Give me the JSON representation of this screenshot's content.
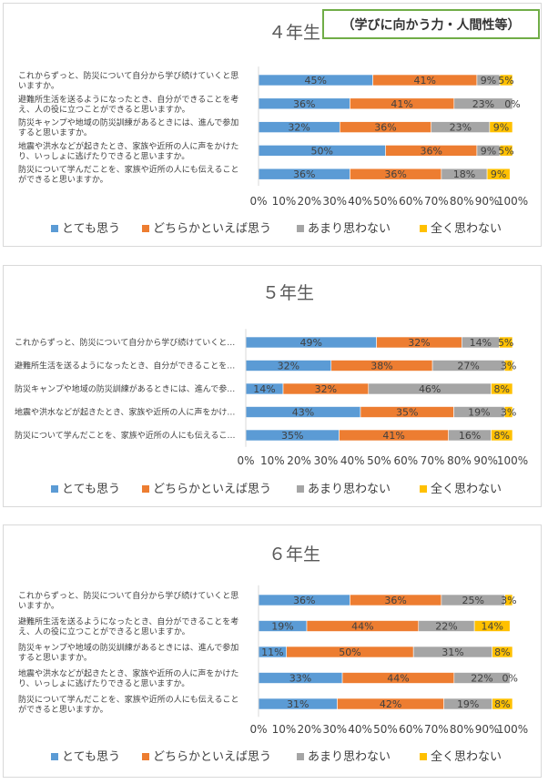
{
  "badge": "（学びに向かう力・人間性等）",
  "chart_data": [
    {
      "type": "bar",
      "orientation": "horizontal-stacked-100",
      "title": "４年生",
      "categories": [
        [
          "これからずっと、防災について自分から学び続けていくと思",
          "いますか。"
        ],
        [
          "避難所生活を送るようになったとき、自分ができることを考",
          "え、人の役に立つことができると思いますか。"
        ],
        [
          "防災キャンプや地域の防災訓練があるときには、進んで参加",
          "すると思いますか。"
        ],
        [
          "地震や洪水などが起きたとき、家族や近所の人に声をかけた",
          "り、いっしょに逃げたりできると思いますか。"
        ],
        [
          "防災について学んだことを、家族や近所の人にも伝えること",
          "ができると思いますか。"
        ]
      ],
      "series": [
        {
          "name": "とても思う",
          "values": [
            45,
            36,
            32,
            50,
            36
          ]
        },
        {
          "name": "どちらかといえば思う",
          "values": [
            41,
            41,
            36,
            36,
            36
          ]
        },
        {
          "name": "あまり思わない",
          "values": [
            9,
            23,
            23,
            9,
            18
          ]
        },
        {
          "name": "全く思わない",
          "values": [
            5,
            0,
            9,
            5,
            9
          ]
        }
      ],
      "x_ticks": [
        "0%",
        "10%",
        "20%",
        "30%",
        "40%",
        "50%",
        "60%",
        "70%",
        "80%",
        "90%",
        "100%"
      ],
      "xlim": [
        0,
        100
      ],
      "legend": "bottom",
      "grid": false
    },
    {
      "type": "bar",
      "orientation": "horizontal-stacked-100",
      "title": "５年生",
      "categories": [
        [
          "これからずっと、防災について自分から学び続けていくと…"
        ],
        [
          "避難所生活を送るようになったとき、自分ができることを…"
        ],
        [
          "防災キャンプや地域の防災訓練があるときには、進んで参…"
        ],
        [
          "地震や洪水などが起きたとき、家族や近所の人に声をかけ…"
        ],
        [
          "防災について学んだことを、家族や近所の人にも伝えるこ…"
        ]
      ],
      "series": [
        {
          "name": "とても思う",
          "values": [
            49,
            32,
            14,
            43,
            35
          ]
        },
        {
          "name": "どちらかといえば思う",
          "values": [
            32,
            38,
            32,
            35,
            41
          ]
        },
        {
          "name": "あまり思わない",
          "values": [
            14,
            27,
            46,
            19,
            16
          ]
        },
        {
          "name": "全く思わない",
          "values": [
            5,
            3,
            8,
            3,
            8
          ]
        }
      ],
      "x_ticks": [
        "0%",
        "10%",
        "20%",
        "30%",
        "40%",
        "50%",
        "60%",
        "70%",
        "80%",
        "90%",
        "100%"
      ],
      "xlim": [
        0,
        100
      ],
      "legend": "bottom",
      "grid": false
    },
    {
      "type": "bar",
      "orientation": "horizontal-stacked-100",
      "title": "６年生",
      "categories": [
        [
          "これからずっと、防災について自分から学び続けていくと思",
          "いますか。"
        ],
        [
          "避難所生活を送るようになったとき、自分ができることを考",
          "え、人の役に立つことができると思いますか。"
        ],
        [
          "防災キャンプや地域の防災訓練があるときには、進んで参加",
          "すると思いますか。"
        ],
        [
          "地震や洪水などが起きたとき、家族や近所の人に声をかけた",
          "り、いっしょに逃げたりできると思いますか。"
        ],
        [
          "防災について学んだことを、家族や近所の人にも伝えること",
          "ができると思いますか。"
        ]
      ],
      "series": [
        {
          "name": "とても思う",
          "values": [
            36,
            19,
            11,
            33,
            31
          ]
        },
        {
          "name": "どちらかといえば思う",
          "values": [
            36,
            44,
            50,
            44,
            42
          ]
        },
        {
          "name": "あまり思わない",
          "values": [
            25,
            22,
            31,
            22,
            19
          ]
        },
        {
          "name": "全く思わない",
          "values": [
            3,
            14,
            8,
            0,
            8
          ]
        }
      ],
      "x_ticks": [
        "0%",
        "10%",
        "20%",
        "30%",
        "40%",
        "50%",
        "60%",
        "70%",
        "80%",
        "90%",
        "100%"
      ],
      "xlim": [
        0,
        100
      ],
      "legend": "bottom",
      "grid": false
    }
  ],
  "colors": [
    "#5b9bd5",
    "#ed7d31",
    "#a5a5a5",
    "#ffc000"
  ]
}
